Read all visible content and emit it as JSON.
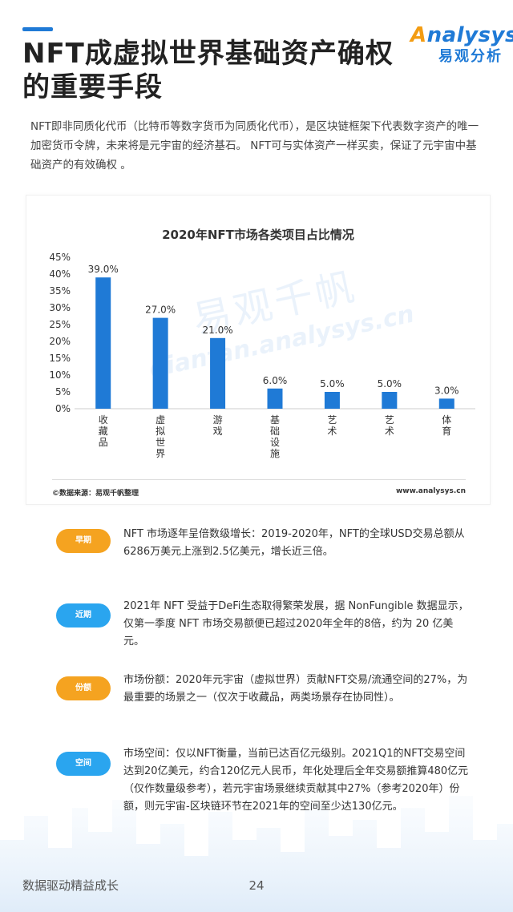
{
  "header": {
    "title": "NFT成虚拟世界基础资产确权的重要手段",
    "logo_en_a": "A",
    "logo_en_rest": "nalysys",
    "logo_cn": "易观分析"
  },
  "intro": "NFT即非同质化代币（比特币等数字货币为同质化代币），是区块链框架下代表数字资产的唯一加密货币令牌，未来将是元宇宙的经济基石。 NFT可与实体资产一样买卖，保证了元宇宙中基础资产的有效确权 。",
  "chart": {
    "source": "©数据来源：易观千帆整理",
    "url": "www.analysys.cn",
    "watermark_cn": "易观千帆",
    "watermark_en": "qianfan.analysys.cn",
    "bar_color": "#1f7ad6"
  },
  "chart_data": {
    "type": "bar",
    "title": "2020年NFT市场各类项目占比情况",
    "categories": [
      "收藏品",
      "虚拟世界",
      "游戏",
      "基础设施",
      "艺术",
      "艺术",
      "体育"
    ],
    "values": [
      39.0,
      27.0,
      21.0,
      6.0,
      5.0,
      5.0,
      3.0
    ],
    "value_labels": [
      "39.0%",
      "27.0%",
      "21.0%",
      "6.0%",
      "5.0%",
      "5.0%",
      "3.0%"
    ],
    "yticks": [
      "0%",
      "5%",
      "10%",
      "15%",
      "20%",
      "25%",
      "30%",
      "35%",
      "40%",
      "45%"
    ],
    "ylim": [
      0,
      45
    ],
    "grid": false
  },
  "items": [
    {
      "tag": "早期",
      "color": "orange",
      "text": "NFT 市场逐年呈倍数级增长：2019-2020年，NFT的全球USD交易总额从6286万美元上涨到2.5亿美元，增长近三倍。"
    },
    {
      "tag": "近期",
      "color": "blue",
      "text": "2021年 NFT 受益于DeFi生态取得繁荣发展，据 NonFungible 数据显示， 仅第一季度 NFT 市场交易额便已超过2020年全年的8倍，约为 20 亿美元。"
    },
    {
      "tag": "份额",
      "color": "orange",
      "text": "市场份额：2020年元宇宙（虚拟世界）贡献NFT交易/流通空间的27%，为最重要的场景之一（仅次于收藏品，两类场景存在协同性）。"
    },
    {
      "tag": "空间",
      "color": "blue",
      "text": "市场空间：仅以NFT衡量，当前已达百亿元级别。2021Q1的NFT交易空间达到20亿美元，约合120亿元人民币，年化处理后全年交易额推算480亿元（仅作数量级参考），若元宇宙场景继续贡献其中27%（参考2020年）份额，则元宇宙-区块链环节在2021年的空间至少达130亿元。"
    }
  ],
  "footer": {
    "slogan": "数据驱动精益成长",
    "page": "24"
  }
}
